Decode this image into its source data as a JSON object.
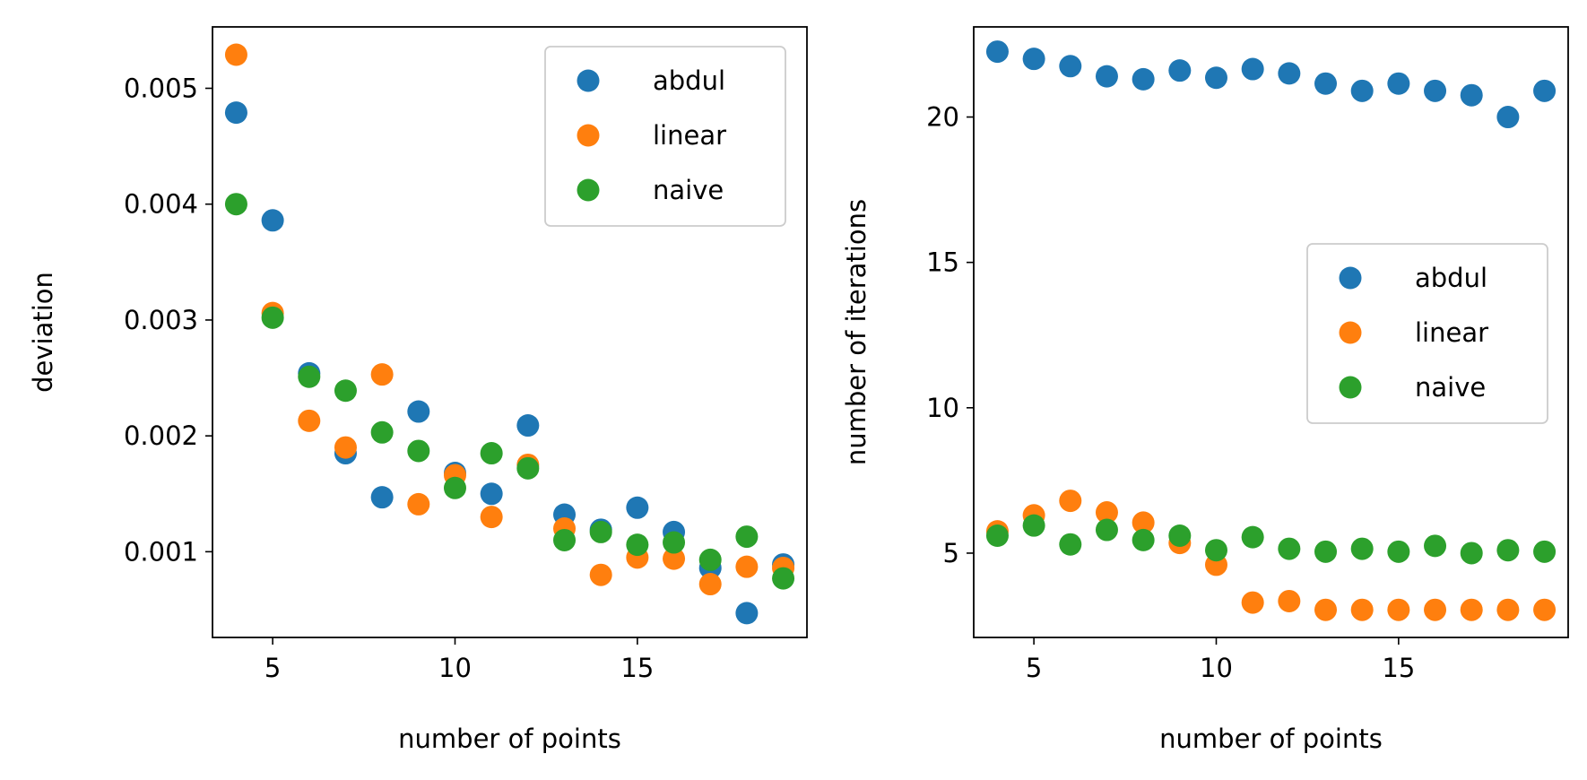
{
  "chart_data": [
    {
      "type": "scatter",
      "xlabel": "number of points",
      "ylabel": "deviation",
      "xlim": [
        3.35,
        19.65
      ],
      "ylim": [
        0.00026,
        0.00553
      ],
      "xticks": [
        5,
        10,
        15
      ],
      "yticks": [
        0.001,
        0.002,
        0.003,
        0.004,
        0.005
      ],
      "ytick_labels": [
        "0.001",
        "0.002",
        "0.003",
        "0.004",
        "0.005"
      ],
      "legend_position": "upper-right",
      "grid": false,
      "series": [
        {
          "name": "abdul",
          "color": "#1f77b4",
          "x": [
            4,
            5,
            6,
            7,
            8,
            9,
            10,
            11,
            12,
            13,
            14,
            15,
            16,
            17,
            18,
            19
          ],
          "y": [
            0.00479,
            0.00386,
            0.00254,
            0.00185,
            0.00147,
            0.00221,
            0.00168,
            0.0015,
            0.00209,
            0.00132,
            0.00119,
            0.00138,
            0.00117,
            0.00086,
            0.00047,
            0.00089
          ]
        },
        {
          "name": "linear",
          "color": "#ff7f0e",
          "x": [
            4,
            5,
            6,
            7,
            8,
            9,
            10,
            11,
            12,
            13,
            14,
            15,
            16,
            17,
            18,
            19
          ],
          "y": [
            0.00529,
            0.00306,
            0.00213,
            0.0019,
            0.00253,
            0.00141,
            0.00166,
            0.0013,
            0.00175,
            0.0012,
            0.0008,
            0.00095,
            0.00094,
            0.00072,
            0.00087,
            0.00086
          ]
        },
        {
          "name": "naive",
          "color": "#2ca02c",
          "x": [
            4,
            5,
            6,
            7,
            8,
            9,
            10,
            11,
            12,
            13,
            14,
            15,
            16,
            17,
            18,
            19
          ],
          "y": [
            0.004,
            0.00302,
            0.00251,
            0.00239,
            0.00203,
            0.00187,
            0.00155,
            0.00185,
            0.00172,
            0.0011,
            0.00117,
            0.00106,
            0.00108,
            0.00093,
            0.00113,
            0.00077
          ]
        }
      ]
    },
    {
      "type": "scatter",
      "xlabel": "number of points",
      "ylabel": "number of iterations",
      "xlim": [
        3.35,
        19.65
      ],
      "ylim": [
        2.1,
        23.1
      ],
      "xticks": [
        5,
        10,
        15
      ],
      "yticks": [
        5,
        10,
        15,
        20
      ],
      "ytick_labels": [
        "5",
        "10",
        "15",
        "20"
      ],
      "legend_position": "center-right",
      "grid": false,
      "series": [
        {
          "name": "abdul",
          "color": "#1f77b4",
          "x": [
            4,
            5,
            6,
            7,
            8,
            9,
            10,
            11,
            12,
            13,
            14,
            15,
            16,
            17,
            18,
            19
          ],
          "y": [
            22.25,
            22.0,
            21.75,
            21.4,
            21.3,
            21.6,
            21.35,
            21.65,
            21.5,
            21.15,
            20.9,
            21.15,
            20.9,
            20.75,
            20.0,
            20.9
          ]
        },
        {
          "name": "linear",
          "color": "#ff7f0e",
          "x": [
            4,
            5,
            6,
            7,
            8,
            9,
            10,
            11,
            12,
            13,
            14,
            15,
            16,
            17,
            18,
            19
          ],
          "y": [
            5.75,
            6.3,
            6.8,
            6.4,
            6.05,
            5.35,
            4.6,
            3.3,
            3.35,
            3.05,
            3.05,
            3.05,
            3.05,
            3.05,
            3.05,
            3.05
          ]
        },
        {
          "name": "naive",
          "color": "#2ca02c",
          "x": [
            4,
            5,
            6,
            7,
            8,
            9,
            10,
            11,
            12,
            13,
            14,
            15,
            16,
            17,
            18,
            19
          ],
          "y": [
            5.6,
            5.95,
            5.3,
            5.8,
            5.45,
            5.6,
            5.1,
            5.55,
            5.15,
            5.05,
            5.15,
            5.05,
            5.25,
            5.0,
            5.1,
            5.05
          ]
        }
      ]
    }
  ]
}
